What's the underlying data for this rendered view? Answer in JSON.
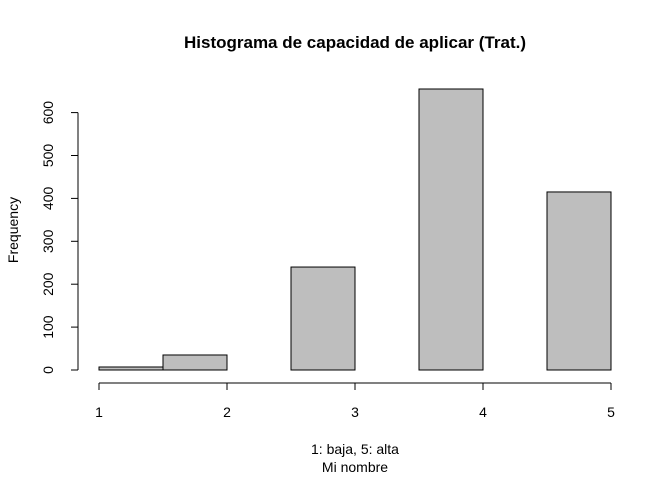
{
  "chart_data": {
    "type": "bar",
    "title": "Histograma de capacidad de aplicar (Trat.)",
    "xlabel": "1: baja, 5: alta",
    "xlabel_line2": "Mi nombre",
    "ylabel": "Frequency",
    "bins": [
      {
        "start": 1.0,
        "end": 1.5,
        "value": 7
      },
      {
        "start": 1.5,
        "end": 2.0,
        "value": 35
      },
      {
        "start": 2.0,
        "end": 2.5,
        "value": 0
      },
      {
        "start": 2.5,
        "end": 3.0,
        "value": 240
      },
      {
        "start": 3.0,
        "end": 3.5,
        "value": 0
      },
      {
        "start": 3.5,
        "end": 4.0,
        "value": 655
      },
      {
        "start": 4.0,
        "end": 4.5,
        "value": 0
      },
      {
        "start": 4.5,
        "end": 5.0,
        "value": 415
      }
    ],
    "xlim": [
      1,
      5
    ],
    "ylim": [
      0,
      655
    ],
    "xticks": [
      1,
      2,
      3,
      4,
      5
    ],
    "yticks": [
      0,
      100,
      200,
      300,
      400,
      500,
      600
    ],
    "grid": false,
    "colors": {
      "bar_fill": "#bebebe",
      "bar_stroke": "#000000"
    }
  }
}
